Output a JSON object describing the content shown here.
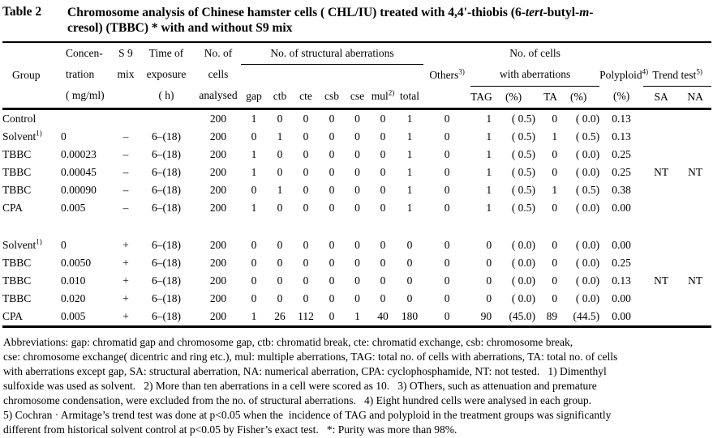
{
  "title": {
    "label": "Table 2",
    "line1_parts": [
      {
        "text": "Chromosome analysis of Chinese hamster cells ( CHL/IU) treated with 4,4'-thiobis (6-",
        "italic": false
      },
      {
        "text": "tert",
        "italic": true
      },
      {
        "text": "-butyl-",
        "italic": false
      },
      {
        "text": "m",
        "italic": true
      },
      {
        "text": "-",
        "italic": false
      }
    ],
    "line2": "cresol) (TBBC) * with and without S9 mix"
  },
  "table": {
    "header": {
      "group": "Group",
      "concentration": [
        "Concen-",
        "tration",
        "( mg/ml)"
      ],
      "s9": [
        "S 9",
        "mix"
      ],
      "time": [
        "Time of",
        "exposure",
        "( h)"
      ],
      "cells": [
        "No. of",
        "cells",
        "analysed"
      ],
      "structural": "No. of structural aberrations",
      "structural_sub": [
        "gap",
        "ctb",
        "cte",
        "csb",
        "cse",
        "mul",
        "total"
      ],
      "mul_sup": "2)",
      "others": "Others",
      "others_sup": "3)",
      "cells_aberr_line1": "No. of cells",
      "cells_aberr_line2": "with aberrations",
      "tag": "TAG",
      "pct": "(%)",
      "ta": "TA",
      "polyploid": "Polyploid",
      "polyploid_sup": "4)",
      "polyploid_pct": "(%)",
      "trend": "Trend test",
      "trend_sup": "5)",
      "sa": "SA",
      "na": "NA"
    },
    "row_groups": [
      [
        {
          "group": "Control",
          "group_sup": "",
          "conc": "",
          "s9": "",
          "time": "",
          "cells": "200",
          "aberrations": [
            "1",
            "0",
            "0",
            "0",
            "0",
            "0",
            "1"
          ],
          "others": "0",
          "tag": "1",
          "tag_pct": "( 0.5)",
          "ta": "0",
          "ta_pct": "( 0.0)",
          "polyploid": "0.13",
          "sa": "",
          "na": ""
        },
        {
          "group": "Solvent",
          "group_sup": "1)",
          "conc": "0",
          "s9": "–",
          "time": "6–(18)",
          "cells": "200",
          "aberrations": [
            "0",
            "1",
            "0",
            "0",
            "0",
            "0",
            "1"
          ],
          "others": "0",
          "tag": "1",
          "tag_pct": "( 0.5)",
          "ta": "1",
          "ta_pct": "( 0.5)",
          "polyploid": "0.13",
          "sa": "",
          "na": ""
        },
        {
          "group": "TBBC",
          "group_sup": "",
          "conc": "0.00023",
          "s9": "–",
          "time": "6–(18)",
          "cells": "200",
          "aberrations": [
            "1",
            "0",
            "0",
            "0",
            "0",
            "0",
            "1"
          ],
          "others": "0",
          "tag": "1",
          "tag_pct": "( 0.5)",
          "ta": "0",
          "ta_pct": "( 0.0)",
          "polyploid": "0.25",
          "sa": "",
          "na": ""
        },
        {
          "group": "TBBC",
          "group_sup": "",
          "conc": "0.00045",
          "s9": "–",
          "time": "6–(18)",
          "cells": "200",
          "aberrations": [
            "1",
            "0",
            "0",
            "0",
            "0",
            "0",
            "1"
          ],
          "others": "0",
          "tag": "1",
          "tag_pct": "( 0.5)",
          "ta": "0",
          "ta_pct": "( 0.0)",
          "polyploid": "0.25",
          "sa": "NT",
          "na": "NT"
        },
        {
          "group": "TBBC",
          "group_sup": "",
          "conc": "0.00090",
          "s9": "–",
          "time": "6–(18)",
          "cells": "200",
          "aberrations": [
            "0",
            "1",
            "0",
            "0",
            "0",
            "0",
            "1"
          ],
          "others": "0",
          "tag": "1",
          "tag_pct": "( 0.5)",
          "ta": "1",
          "ta_pct": "( 0.5)",
          "polyploid": "0.38",
          "sa": "",
          "na": ""
        },
        {
          "group": "CPA",
          "group_sup": "",
          "conc": "0.005",
          "s9": "–",
          "time": "6–(18)",
          "cells": "200",
          "aberrations": [
            "1",
            "0",
            "0",
            "0",
            "0",
            "0",
            "1"
          ],
          "others": "0",
          "tag": "1",
          "tag_pct": "( 0.5)",
          "ta": "0",
          "ta_pct": "( 0.0)",
          "polyploid": "0.00",
          "sa": "",
          "na": ""
        }
      ],
      [
        {
          "group": "Solvent",
          "group_sup": "1)",
          "conc": "0",
          "s9": "+",
          "time": "6–(18)",
          "cells": "200",
          "aberrations": [
            "0",
            "0",
            "0",
            "0",
            "0",
            "0",
            "0"
          ],
          "others": "0",
          "tag": "0",
          "tag_pct": "( 0.0)",
          "ta": "0",
          "ta_pct": "( 0.0)",
          "polyploid": "0.00",
          "sa": "",
          "na": ""
        },
        {
          "group": "TBBC",
          "group_sup": "",
          "conc": "0.0050",
          "s9": "+",
          "time": "6–(18)",
          "cells": "200",
          "aberrations": [
            "0",
            "0",
            "0",
            "0",
            "0",
            "0",
            "0"
          ],
          "others": "0",
          "tag": "0",
          "tag_pct": "( 0.0)",
          "ta": "0",
          "ta_pct": "( 0.0)",
          "polyploid": "0.25",
          "sa": "",
          "na": ""
        },
        {
          "group": "TBBC",
          "group_sup": "",
          "conc": "0.010",
          "s9": "+",
          "time": "6–(18)",
          "cells": "200",
          "aberrations": [
            "0",
            "0",
            "0",
            "0",
            "0",
            "0",
            "0"
          ],
          "others": "0",
          "tag": "0",
          "tag_pct": "( 0.0)",
          "ta": "0",
          "ta_pct": "( 0.0)",
          "polyploid": "0.13",
          "sa": "NT",
          "na": "NT"
        },
        {
          "group": "TBBC",
          "group_sup": "",
          "conc": "0.020",
          "s9": "+",
          "time": "6–(18)",
          "cells": "200",
          "aberrations": [
            "0",
            "0",
            "0",
            "0",
            "0",
            "0",
            "0"
          ],
          "others": "0",
          "tag": "0",
          "tag_pct": "( 0.0)",
          "ta": "0",
          "ta_pct": "( 0.0)",
          "polyploid": "0.00",
          "sa": "",
          "na": ""
        },
        {
          "group": "CPA",
          "group_sup": "",
          "conc": "0.005",
          "s9": "+",
          "time": "6–(18)",
          "cells": "200",
          "aberrations": [
            "1",
            "26",
            "112",
            "0",
            "1",
            "40",
            "180"
          ],
          "others": "0",
          "tag": "90",
          "tag_pct": "(45.0)",
          "ta": "89",
          "ta_pct": "(44.5)",
          "polyploid": "0.00",
          "sa": "",
          "na": ""
        }
      ]
    ]
  },
  "footnotes": [
    "Abbreviations: gap: chromatid gap and chromosome gap, ctb: chromatid break, cte: chromatid exchange, csb: chromosome break,",
    "cse: chromosome exchange( dicentric and ring etc.), mul: multiple aberrations, TAG: total no. of cells with aberrations, TA: total no. of cells",
    "with aberrations except gap, SA: structural aberration, NA: numerical aberration, CPA: cyclophosphamide, NT: not tested.   1) Dimenthyl",
    "sulfoxide was used as solvent.   2) More than ten aberrations in a cell were scored as 10.   3) OThers, such as attenuation and premature",
    "chromosome condensation, were excluded from the no. of structural aberrations.   4) Eight hundred cells were analysed in each group.",
    "5) Cochran · Armitage’s trend test was done at p<0.05 when the  incidence of TAG and polyploid in the treatment groups was significantly",
    "different from historical solvent control at p<0.05 by Fisher’s exact test.   *: Purity was more than 98%."
  ]
}
